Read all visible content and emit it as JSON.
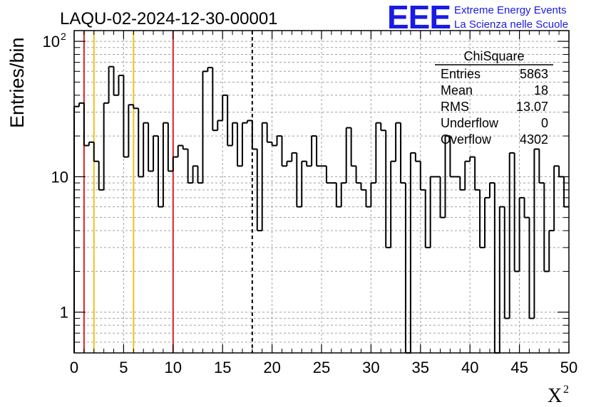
{
  "chart_data": {
    "type": "bar",
    "title": "LAQU-02-2024-12-30-00001",
    "xlabel": "X",
    "xlabel_superscript": "2",
    "ylabel": "Entries/bin",
    "xlim": [
      0,
      50
    ],
    "ylim": [
      0.5,
      120
    ],
    "yscale": "log",
    "grid": true,
    "x_ticks": [
      0,
      5,
      10,
      15,
      20,
      25,
      30,
      35,
      40,
      45,
      50
    ],
    "y_ticks": [
      {
        "value": 1,
        "label": "1"
      },
      {
        "value": 10,
        "label": "10"
      },
      {
        "value": 100,
        "label": "10",
        "sup": "2"
      }
    ],
    "bin_width": 0.5,
    "bin_start": 0,
    "values": [
      33,
      35,
      17,
      18,
      13,
      8,
      35,
      65,
      40,
      56,
      14,
      34,
      32,
      10,
      25,
      11,
      20,
      6,
      25,
      11,
      14,
      17,
      16,
      9,
      12,
      9,
      60,
      64,
      22,
      26,
      40,
      17,
      25,
      12,
      25,
      26,
      16,
      4,
      25,
      18,
      17,
      20,
      12,
      13,
      15,
      6,
      13,
      12,
      20,
      12,
      12,
      9,
      9,
      6,
      9,
      23,
      12,
      9,
      8,
      6,
      9,
      25,
      22,
      3,
      13,
      25,
      9,
      0.5,
      15,
      13,
      8,
      3,
      10,
      10,
      5,
      20,
      10,
      10,
      8,
      13,
      14,
      8,
      3,
      7,
      9,
      0.5,
      6,
      0.9,
      15,
      2,
      7,
      5,
      0.9,
      16,
      9,
      2,
      4,
      12,
      10,
      6
    ],
    "reference_lines": [
      {
        "x": 1,
        "color": "#dd2222",
        "style": "solid"
      },
      {
        "x": 2,
        "color": "#f0c020",
        "style": "solid"
      },
      {
        "x": 6,
        "color": "#f0c020",
        "style": "solid"
      },
      {
        "x": 10,
        "color": "#dd2222",
        "style": "solid"
      },
      {
        "x": 18,
        "color": "#000000",
        "style": "dashed"
      }
    ],
    "stats_box": {
      "title": "ChiSquare",
      "rows": [
        {
          "label": "Entries",
          "value": "5863"
        },
        {
          "label": "Mean",
          "value": "18"
        },
        {
          "label": "RMS",
          "value": "13.07"
        },
        {
          "label": "Underflow",
          "value": "0"
        },
        {
          "label": "Overflow",
          "value": "4302"
        }
      ],
      "placement": "top-right"
    }
  },
  "logo": {
    "mark": "EEE",
    "line1": "Extreme Energy Events",
    "line2": "La Scienza nelle Scuole",
    "color": "#1a1ae6"
  }
}
